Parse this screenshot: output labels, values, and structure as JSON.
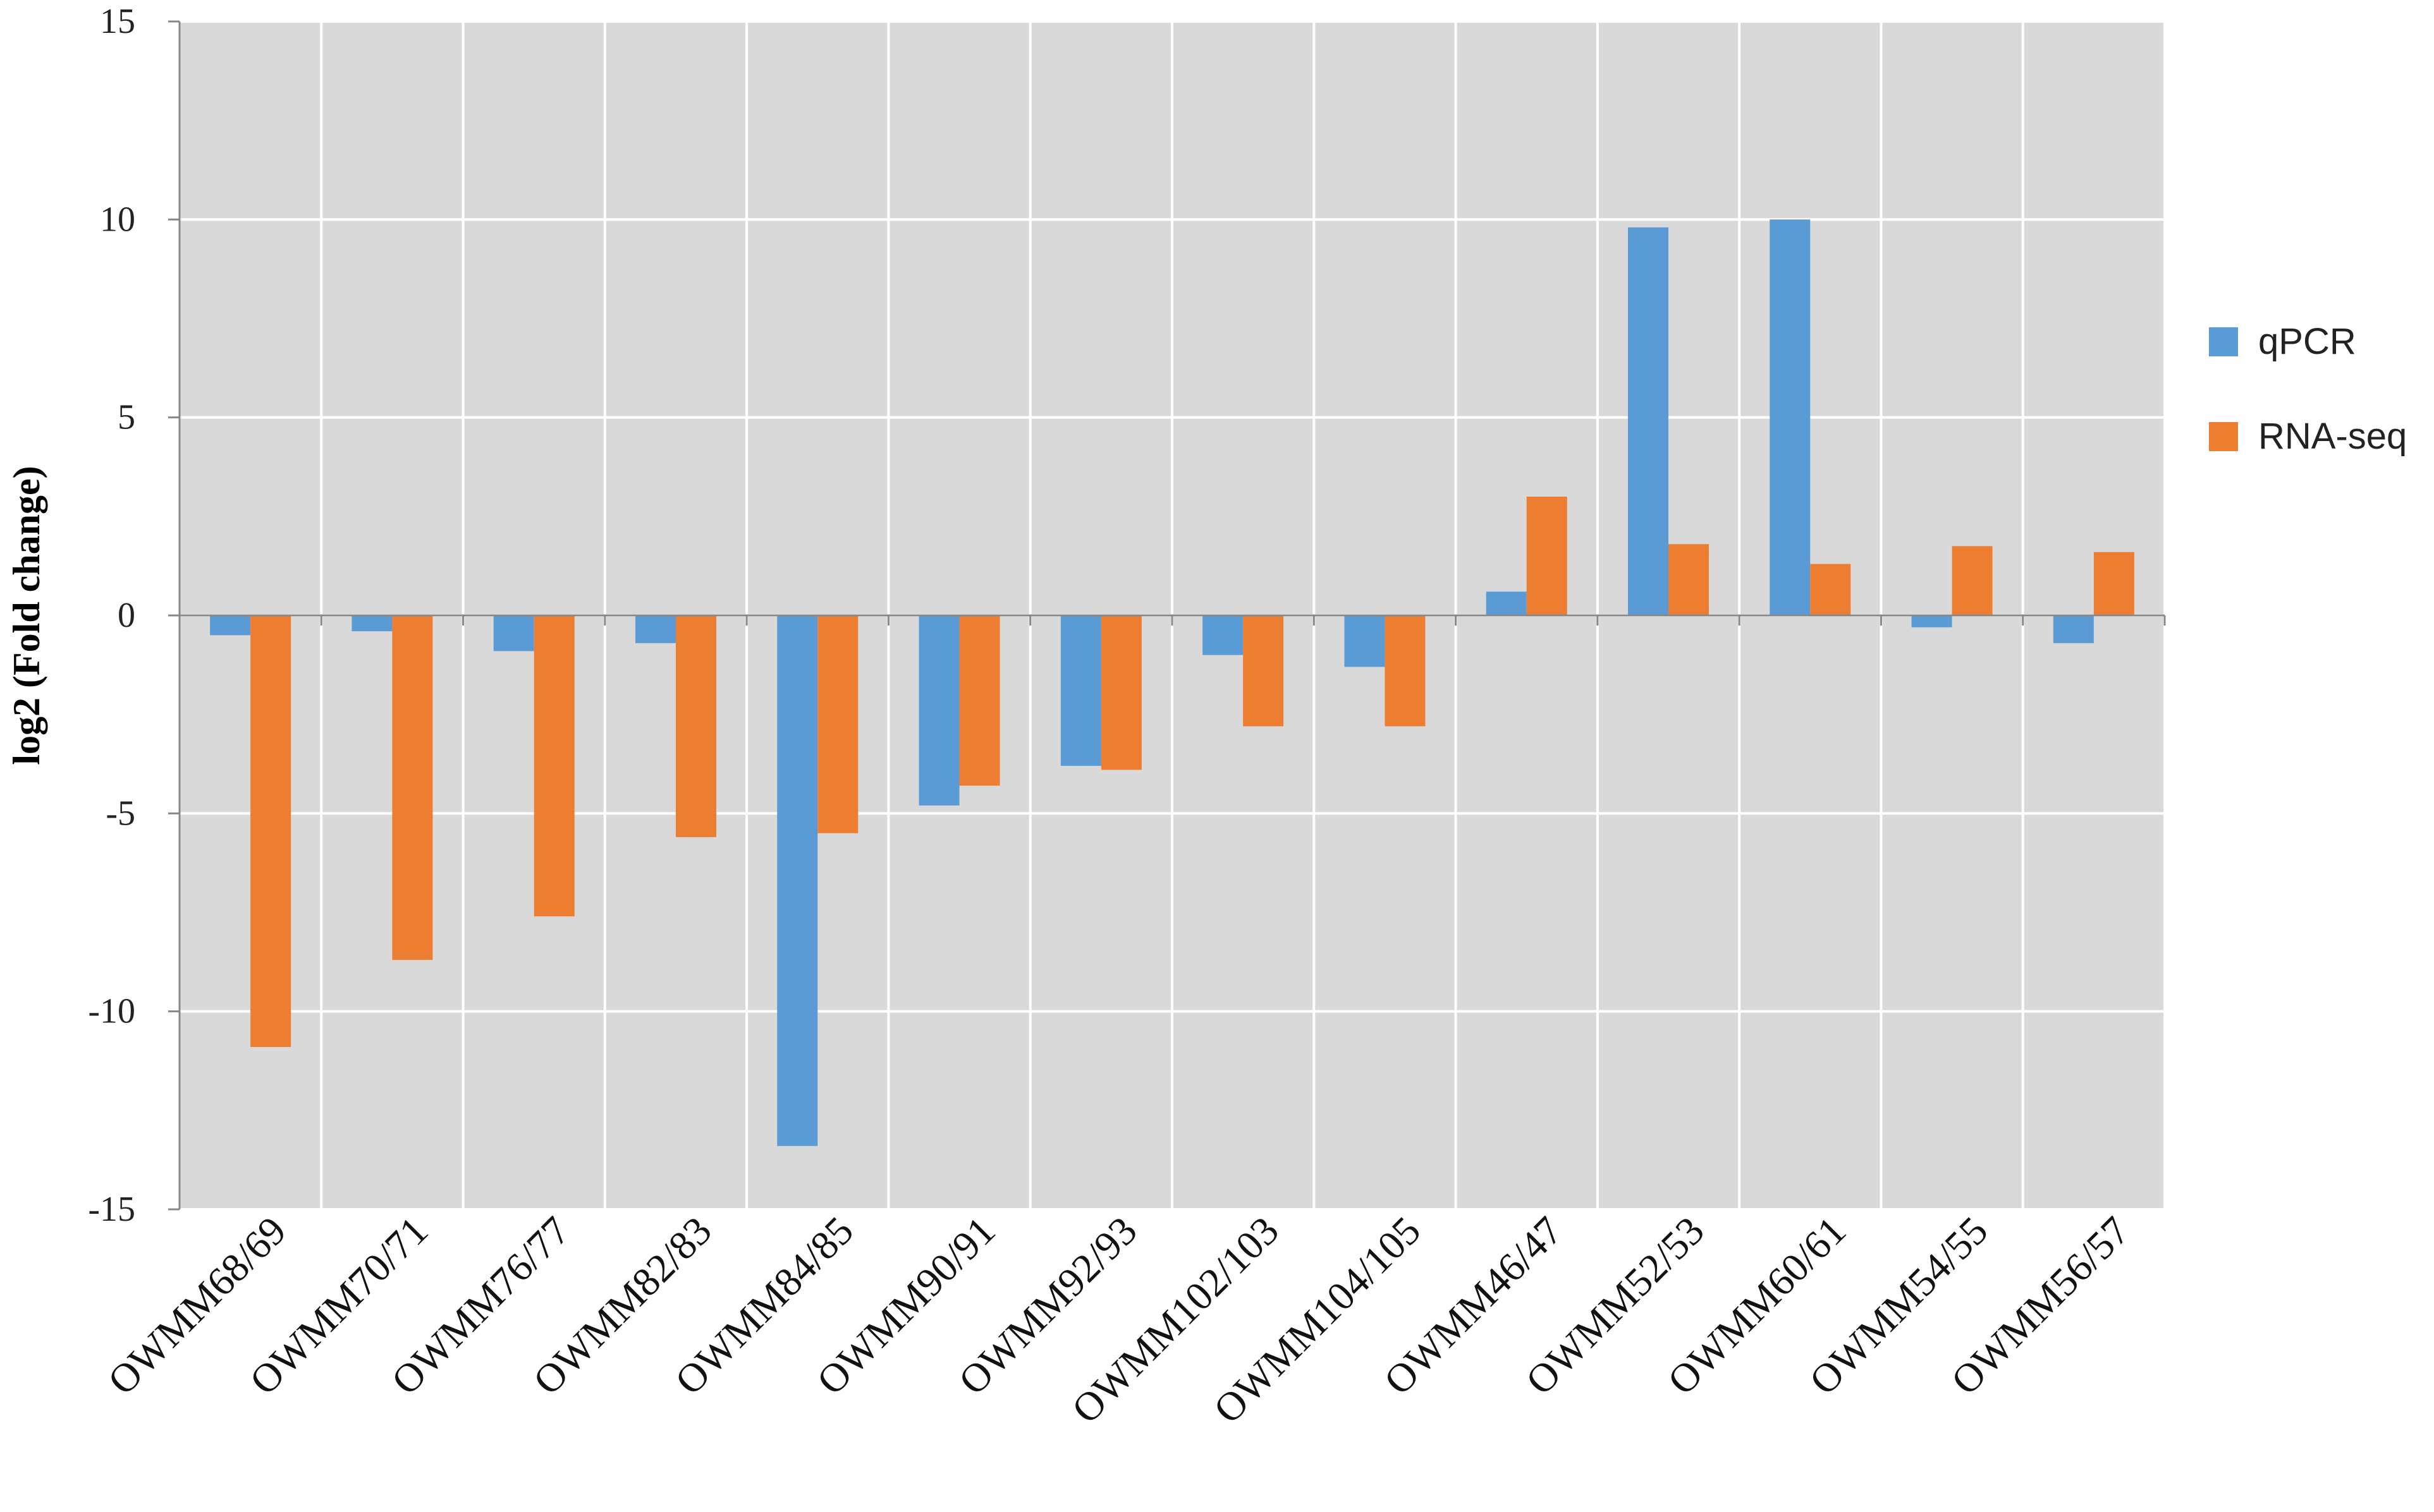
{
  "chart_data": {
    "type": "bar",
    "title": "",
    "xlabel": "",
    "ylabel": "log2 (Fold change)",
    "ylim": [
      -15,
      15
    ],
    "yticks": [
      15,
      10,
      5,
      0,
      -5,
      -10,
      -15
    ],
    "ytick_labels": [
      "15",
      "10",
      "5",
      "0",
      "-5",
      "-10",
      "-15"
    ],
    "grid": true,
    "legend_position": "right",
    "background_color": "#d9d9d9",
    "grid_color": "#ffffff",
    "categories": [
      "OWMM68/69",
      "OWMM70/71",
      "OWMM76/77",
      "OWMM82/83",
      "OWMM84/85",
      "OWMM90/91",
      "OWMM92/93",
      "OWMM102/103",
      "OWMM104/105",
      "OWMM46/47",
      "OWMM52/53",
      "OWMM60/61",
      "OWMM54/55",
      "OWMM56/57"
    ],
    "series": [
      {
        "name": "qPCR",
        "color": "#5b9bd5",
        "values": [
          -0.5,
          -0.4,
          -0.9,
          -0.7,
          -13.4,
          -4.8,
          -3.8,
          -1.0,
          -1.3,
          0.6,
          9.8,
          10.0,
          -0.3,
          -0.7
        ]
      },
      {
        "name": "RNA-seq",
        "color": "#ed7d31",
        "values": [
          -10.9,
          -8.7,
          -7.6,
          -5.6,
          -5.5,
          -4.3,
          -3.9,
          -2.8,
          -2.8,
          3.0,
          1.8,
          1.3,
          1.75,
          1.6
        ]
      }
    ]
  }
}
